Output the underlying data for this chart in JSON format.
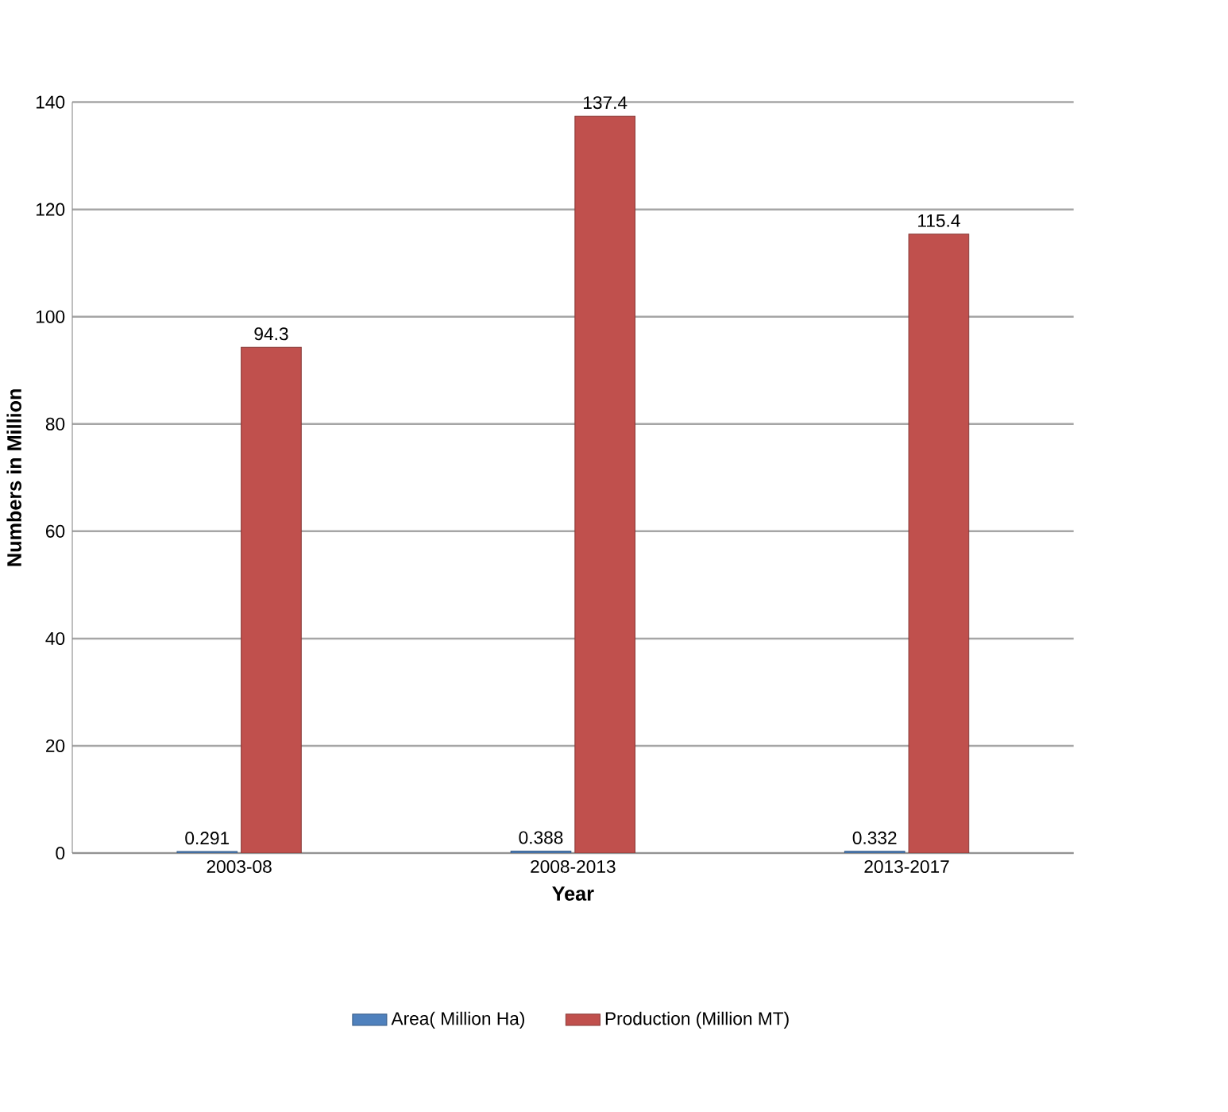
{
  "chart_data": {
    "type": "bar",
    "xlabel": "Year",
    "ylabel": "Numbers in Million",
    "categories": [
      "2003-08",
      "2008-2013",
      "2013-2017"
    ],
    "series": [
      {
        "name": "Area( Million Ha)",
        "color": "#4f81bd",
        "values": [
          0.291,
          0.388,
          0.332
        ]
      },
      {
        "name": "Production  (Million MT)",
        "color": "#c0504d",
        "values": [
          94.3,
          137.4,
          115.4
        ]
      }
    ],
    "ylim": [
      0,
      140
    ],
    "yticks": [
      0,
      20,
      40,
      60,
      80,
      100,
      120,
      140
    ],
    "grid": "y",
    "legend": "bottom",
    "data_labels": true
  }
}
